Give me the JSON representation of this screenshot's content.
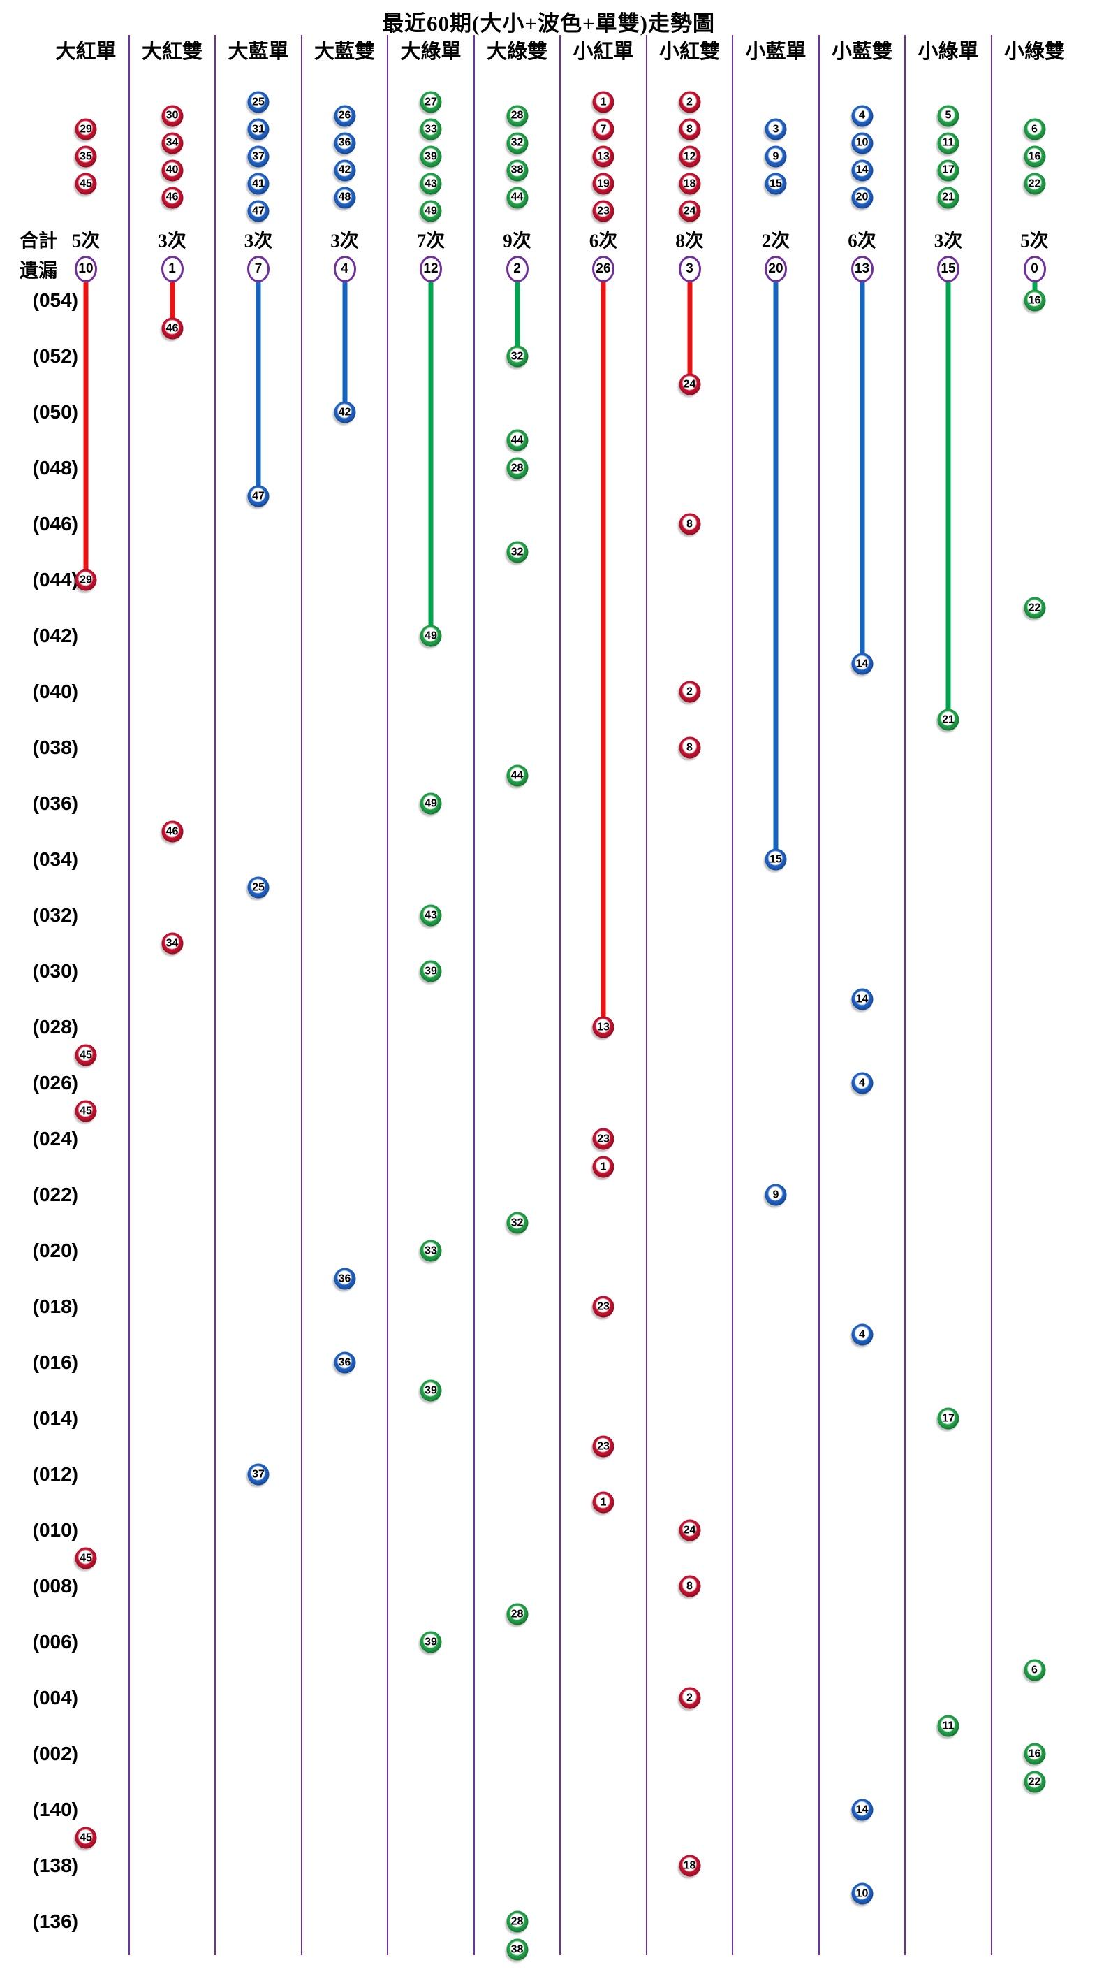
{
  "title": "最近60期(大小+波色+單雙)走勢圖",
  "legend": {
    "total": "合計",
    "missing": "遺漏"
  },
  "colors": {
    "red_ball": "#C2112E",
    "blue_ball": "#1E5FC1",
    "green_ball": "#1E9E45",
    "red_line": "#EE1111",
    "blue_line": "#1565C0",
    "green_line": "#00A44E",
    "separator": "#7030A0",
    "circle_border": "#7030A0",
    "text": "#000000"
  },
  "columns": [
    {
      "label": "大紅單",
      "color": "red",
      "members": [
        "29",
        "35",
        "45"
      ],
      "total": "5次",
      "missing": 10
    },
    {
      "label": "大紅雙",
      "color": "red",
      "members": [
        "30",
        "34",
        "40",
        "46"
      ],
      "total": "3次",
      "missing": 1
    },
    {
      "label": "大藍單",
      "color": "blue",
      "members": [
        "25",
        "31",
        "37",
        "41",
        "47"
      ],
      "total": "3次",
      "missing": 7
    },
    {
      "label": "大藍雙",
      "color": "blue",
      "members": [
        "26",
        "36",
        "42",
        "48"
      ],
      "total": "3次",
      "missing": 4
    },
    {
      "label": "大綠單",
      "color": "green",
      "members": [
        "27",
        "33",
        "39",
        "43",
        "49"
      ],
      "total": "7次",
      "missing": 12
    },
    {
      "label": "大綠雙",
      "color": "green",
      "members": [
        "28",
        "32",
        "38",
        "44"
      ],
      "total": "9次",
      "missing": 2
    },
    {
      "label": "小紅單",
      "color": "red",
      "members": [
        "1",
        "7",
        "13",
        "19",
        "23"
      ],
      "total": "6次",
      "missing": 26
    },
    {
      "label": "小紅雙",
      "color": "red",
      "members": [
        "2",
        "8",
        "12",
        "18",
        "24"
      ],
      "total": "8次",
      "missing": 3
    },
    {
      "label": "小藍單",
      "color": "blue",
      "members": [
        "3",
        "9",
        "15"
      ],
      "total": "2次",
      "missing": 20
    },
    {
      "label": "小藍雙",
      "color": "blue",
      "members": [
        "4",
        "10",
        "14",
        "20"
      ],
      "total": "6次",
      "missing": 13
    },
    {
      "label": "小綠單",
      "color": "green",
      "members": [
        "5",
        "11",
        "17",
        "21"
      ],
      "total": "3次",
      "missing": 15
    },
    {
      "label": "小綠雙",
      "color": "green",
      "members": [
        "6",
        "16",
        "22"
      ],
      "total": "5次",
      "missing": 0
    }
  ],
  "chart_data": {
    "type": "scatter",
    "title": "最近60期(大小+波色+單雙)走勢圖",
    "x_categories": [
      "大紅單",
      "大紅雙",
      "大藍單",
      "大藍雙",
      "大綠單",
      "大綠雙",
      "小紅單",
      "小紅雙",
      "小藍單",
      "小藍雙",
      "小綠單",
      "小綠雙"
    ],
    "totals_per_category": [
      5,
      3,
      3,
      3,
      7,
      9,
      6,
      8,
      2,
      6,
      3,
      5
    ],
    "missing_per_category": [
      10,
      1,
      7,
      4,
      12,
      2,
      26,
      3,
      20,
      13,
      15,
      0
    ],
    "y_axis": "期號，由上(最新054)至下(最舊135)，每2期標註一次",
    "visible_row_labels": [
      "(054)",
      "(052)",
      "(050)",
      "(048)",
      "(046)",
      "(044)",
      "(042)",
      "(040)",
      "(038)",
      "(036)",
      "(034)",
      "(032)",
      "(030)",
      "(028)",
      "(026)",
      "(024)",
      "(022)",
      "(020)",
      "(018)",
      "(016)",
      "(014)",
      "(012)",
      "(010)",
      "(008)",
      "(006)",
      "(004)",
      "(002)",
      "(140)",
      "(138)",
      "(136)"
    ],
    "draws": [
      {
        "period": "054",
        "col": 12,
        "number": "16"
      },
      {
        "period": "053",
        "col": 2,
        "number": "46"
      },
      {
        "period": "052",
        "col": 6,
        "number": "32"
      },
      {
        "period": "051",
        "col": 8,
        "number": "24"
      },
      {
        "period": "050",
        "col": 4,
        "number": "42"
      },
      {
        "period": "049",
        "col": 6,
        "number": "44"
      },
      {
        "period": "048",
        "col": 6,
        "number": "28"
      },
      {
        "period": "047",
        "col": 3,
        "number": "47"
      },
      {
        "period": "046",
        "col": 8,
        "number": "8"
      },
      {
        "period": "045",
        "col": 6,
        "number": "32"
      },
      {
        "period": "044",
        "col": 1,
        "number": "29"
      },
      {
        "period": "043",
        "col": 12,
        "number": "22"
      },
      {
        "period": "042",
        "col": 5,
        "number": "49"
      },
      {
        "period": "041",
        "col": 10,
        "number": "14"
      },
      {
        "period": "040",
        "col": 8,
        "number": "2"
      },
      {
        "period": "039",
        "col": 11,
        "number": "21"
      },
      {
        "period": "038",
        "col": 8,
        "number": "8"
      },
      {
        "period": "037",
        "col": 6,
        "number": "44"
      },
      {
        "period": "036",
        "col": 5,
        "number": "49"
      },
      {
        "period": "035",
        "col": 2,
        "number": "46"
      },
      {
        "period": "034",
        "col": 9,
        "number": "15"
      },
      {
        "period": "033",
        "col": 3,
        "number": "25"
      },
      {
        "period": "032",
        "col": 5,
        "number": "43"
      },
      {
        "period": "031",
        "col": 2,
        "number": "34"
      },
      {
        "period": "030",
        "col": 5,
        "number": "39"
      },
      {
        "period": "029",
        "col": 10,
        "number": "14"
      },
      {
        "period": "028",
        "col": 7,
        "number": "13"
      },
      {
        "period": "027",
        "col": 1,
        "number": "45"
      },
      {
        "period": "026",
        "col": 10,
        "number": "4"
      },
      {
        "period": "025",
        "col": 1,
        "number": "45"
      },
      {
        "period": "024",
        "col": 7,
        "number": "23"
      },
      {
        "period": "023",
        "col": 7,
        "number": "1"
      },
      {
        "period": "022",
        "col": 9,
        "number": "9"
      },
      {
        "period": "021",
        "col": 6,
        "number": "32"
      },
      {
        "period": "020",
        "col": 5,
        "number": "33"
      },
      {
        "period": "019",
        "col": 4,
        "number": "36"
      },
      {
        "period": "018",
        "col": 7,
        "number": "23"
      },
      {
        "period": "017",
        "col": 10,
        "number": "4"
      },
      {
        "period": "016",
        "col": 4,
        "number": "36"
      },
      {
        "period": "015",
        "col": 5,
        "number": "39"
      },
      {
        "period": "014",
        "col": 11,
        "number": "17"
      },
      {
        "period": "013",
        "col": 7,
        "number": "23"
      },
      {
        "period": "012",
        "col": 3,
        "number": "37"
      },
      {
        "period": "011",
        "col": 7,
        "number": "1"
      },
      {
        "period": "010",
        "col": 8,
        "number": "24"
      },
      {
        "period": "009",
        "col": 1,
        "number": "45"
      },
      {
        "period": "008",
        "col": 8,
        "number": "8"
      },
      {
        "period": "007",
        "col": 6,
        "number": "28"
      },
      {
        "period": "006",
        "col": 5,
        "number": "39"
      },
      {
        "period": "005",
        "col": 12,
        "number": "6"
      },
      {
        "period": "004",
        "col": 8,
        "number": "2"
      },
      {
        "period": "003",
        "col": 11,
        "number": "11"
      },
      {
        "period": "002",
        "col": 12,
        "number": "16"
      },
      {
        "period": "001",
        "col": 12,
        "number": "22"
      },
      {
        "period": "140",
        "col": 10,
        "number": "14"
      },
      {
        "period": "139",
        "col": 1,
        "number": "45"
      },
      {
        "period": "138",
        "col": 8,
        "number": "18"
      },
      {
        "period": "137",
        "col": 10,
        "number": "10"
      },
      {
        "period": "136",
        "col": 6,
        "number": "28"
      },
      {
        "period": "135",
        "col": 6,
        "number": "38"
      }
    ]
  }
}
